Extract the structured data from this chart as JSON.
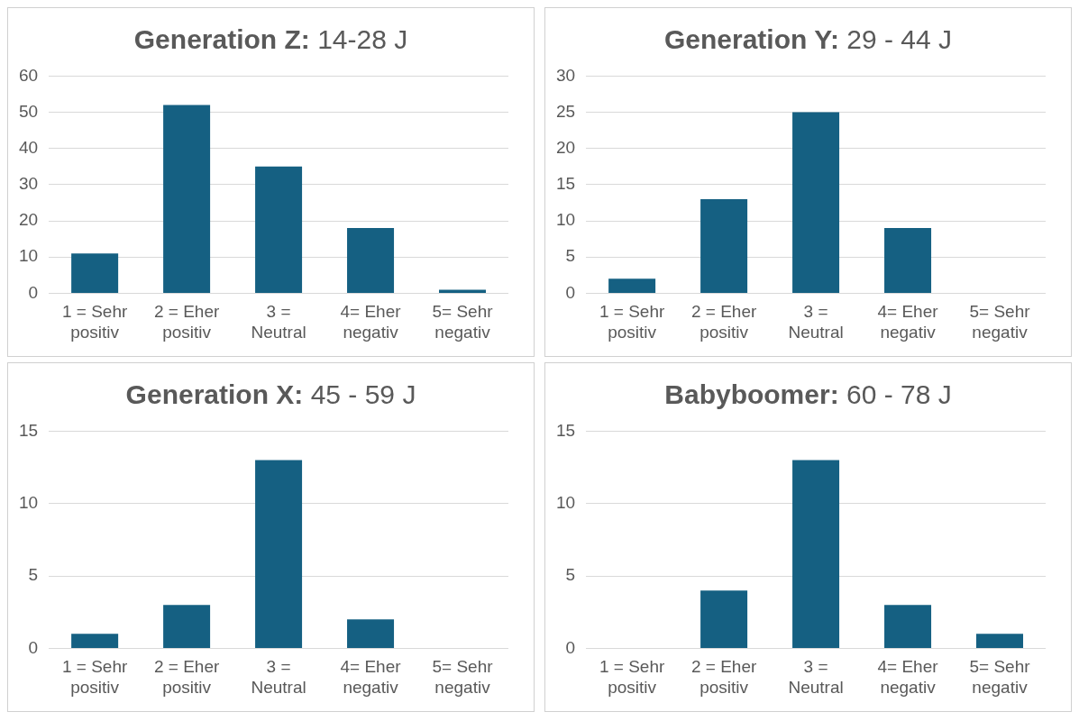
{
  "chart_data": [
    {
      "type": "bar",
      "title": "Generation Z: 14-28 J",
      "categories": [
        "1 = Sehr positiv",
        "2 = Eher positiv",
        "3 = Neutral",
        "4= Eher negativ",
        "5= Sehr negativ"
      ],
      "values": [
        11,
        52,
        35,
        18,
        1
      ],
      "color": "#156082",
      "ylim": [
        0,
        60
      ],
      "yticks": [
        0,
        10,
        20,
        30,
        40,
        50,
        60
      ],
      "grid": "y"
    },
    {
      "type": "bar",
      "title": "Generation Y: 29 - 44 J",
      "categories": [
        "1 = Sehr positiv",
        "2 = Eher positiv",
        "3 = Neutral",
        "4= Eher negativ",
        "5= Sehr negativ"
      ],
      "values": [
        2,
        13,
        25,
        9,
        0
      ],
      "color": "#156082",
      "ylim": [
        0,
        30
      ],
      "yticks": [
        0,
        5,
        10,
        15,
        20,
        25,
        30
      ],
      "grid": "y"
    },
    {
      "type": "bar",
      "title": "Generation X: 45 - 59 J",
      "categories": [
        "1 = Sehr positiv",
        "2 = Eher positiv",
        "3 = Neutral",
        "4= Eher negativ",
        "5= Sehr negativ"
      ],
      "values": [
        1,
        3,
        13,
        2,
        0
      ],
      "color": "#156082",
      "ylim": [
        0,
        15
      ],
      "yticks": [
        0,
        5,
        10,
        15
      ],
      "grid": "y"
    },
    {
      "type": "bar",
      "title": "Babyboomer: 60 - 78 J",
      "categories": [
        "1 = Sehr positiv",
        "2 = Eher positiv",
        "3 = Neutral",
        "4= Eher negativ",
        "5= Sehr negativ"
      ],
      "values": [
        0,
        4,
        13,
        3,
        1
      ],
      "color": "#156082",
      "ylim": [
        0,
        15
      ],
      "yticks": [
        0,
        5,
        10,
        15
      ],
      "grid": "y"
    }
  ]
}
